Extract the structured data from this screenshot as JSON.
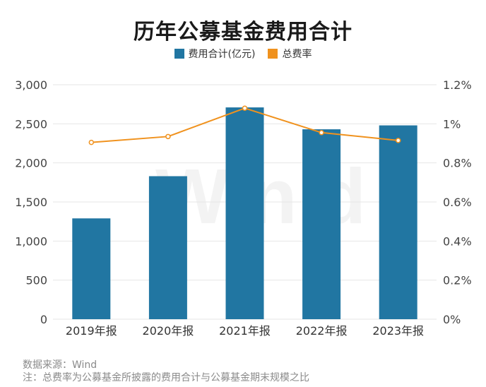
{
  "title": "历年公募基金费用合计",
  "legend": {
    "fee_label": "费用合计(亿元)",
    "rate_label": "总费率"
  },
  "colors": {
    "bar": "#2176a2",
    "line": "#f0921e",
    "grid": "#e6e6e6"
  },
  "watermark": "Win.d",
  "footer": {
    "source": "数据来源：Wind",
    "note": "注：总费率为公募基金所披露的费用合计与公募基金期末规模之比"
  },
  "chart_data": {
    "type": "bar",
    "categories": [
      "2019年报",
      "2020年报",
      "2021年报",
      "2022年报",
      "2023年报"
    ],
    "series": [
      {
        "name": "费用合计(亿元)",
        "type": "bar",
        "axis": "left",
        "values": [
          1290,
          1830,
          2710,
          2430,
          2480
        ]
      },
      {
        "name": "总费率",
        "type": "line",
        "axis": "right",
        "values": [
          0.905,
          0.935,
          1.08,
          0.955,
          0.915
        ]
      }
    ],
    "y_left": {
      "min": 0,
      "max": 3000,
      "ticks": [
        "0",
        "500",
        "1,000",
        "1,500",
        "2,000",
        "2,500",
        "3,000"
      ]
    },
    "y_right": {
      "min": 0,
      "max": 1.2,
      "ticks": [
        "0%",
        "0.2%",
        "0.4%",
        "0.6%",
        "0.8%",
        "1%",
        "1.2%"
      ]
    },
    "grid": true,
    "legend_position": "top-center"
  }
}
